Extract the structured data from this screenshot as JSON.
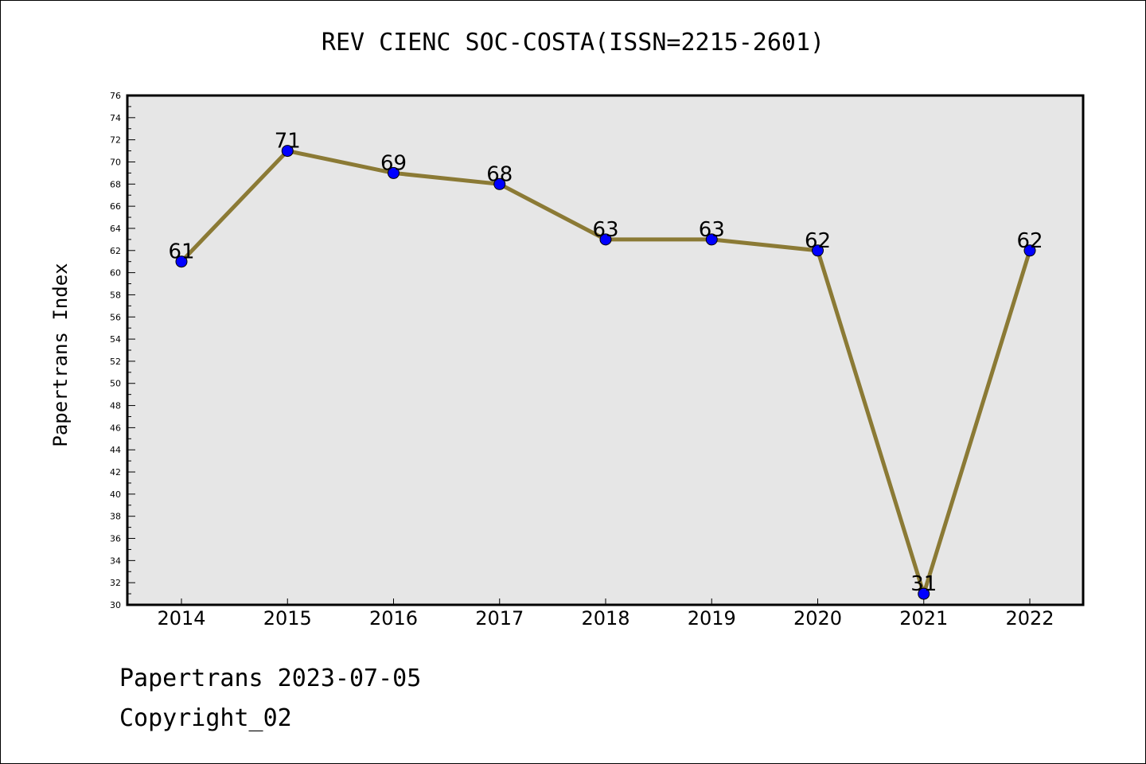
{
  "chart_data": {
    "type": "line",
    "title": "REV CIENC SOC-COSTA(ISSN=2215-2601)",
    "xlabel": "",
    "ylabel": "Papertrans Index",
    "categories": [
      "2014",
      "2015",
      "2016",
      "2017",
      "2018",
      "2019",
      "2020",
      "2021",
      "2022"
    ],
    "series": [
      {
        "values": [
          61,
          71,
          69,
          68,
          63,
          63,
          62,
          31,
          62
        ]
      }
    ],
    "ylim": [
      30,
      76
    ],
    "y_tick_step": 2,
    "grid": false,
    "colors": {
      "plot_background": "#e6e6e6",
      "line": "#8b7a35",
      "marker": "#0000ff"
    }
  },
  "footer": {
    "line1": "Papertrans 2023-07-05",
    "line2": "Copyright_02"
  }
}
